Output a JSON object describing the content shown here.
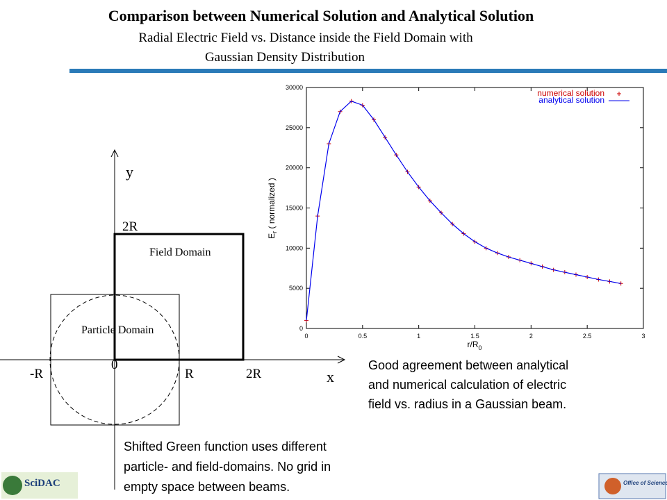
{
  "header": {
    "title": "Comparison between Numerical Solution and Analytical Solution",
    "subtitle_lines": [
      "Radial Electric Field vs. Distance inside the Field Domain with",
      "Gaussian Density Distribution"
    ]
  },
  "diagram": {
    "y_axis": "y",
    "x_axis": "x",
    "origin": "0",
    "y_2r": "2R",
    "x_neg_r": "-R",
    "x_r": "R",
    "x_2r": "2R",
    "field_domain": "Field Domain",
    "particle_domain": "Particle Domain"
  },
  "chart_data": {
    "type": "line",
    "xlabel": {
      "main": "r/R",
      "subscript": "0"
    },
    "ylabel": {
      "main": "E",
      "subscript": "r",
      "rest": " ( normalized )"
    },
    "x": [
      0,
      0.1,
      0.2,
      0.3,
      0.4,
      0.5,
      0.6,
      0.7,
      0.8,
      0.9,
      1.0,
      1.1,
      1.2,
      1.3,
      1.4,
      1.5,
      1.6,
      1.7,
      1.8,
      1.9,
      2.0,
      2.1,
      2.2,
      2.3,
      2.4,
      2.5,
      2.6,
      2.7,
      2.8
    ],
    "series": [
      {
        "name": "numerical solution",
        "color": "#cc0000",
        "marker": "+",
        "values": [
          1000,
          14000,
          23000,
          27000,
          28300,
          27800,
          26000,
          23800,
          21600,
          19500,
          17600,
          15900,
          14400,
          13000,
          11800,
          10800,
          10000,
          9400,
          8900,
          8500,
          8100,
          7700,
          7300,
          7000,
          6700,
          6400,
          6100,
          5850,
          5600
        ]
      },
      {
        "name": "analytical solution",
        "color": "#0000ee",
        "marker": "line",
        "values": [
          1000,
          14000,
          23000,
          27000,
          28300,
          27800,
          26000,
          23800,
          21600,
          19500,
          17600,
          15900,
          14400,
          13000,
          11800,
          10800,
          10000,
          9400,
          8900,
          8500,
          8100,
          7700,
          7300,
          7000,
          6700,
          6400,
          6100,
          5850,
          5600
        ]
      }
    ],
    "xlim": [
      0,
      3
    ],
    "xticks": [
      0,
      0.5,
      1,
      1.5,
      2,
      2.5,
      3
    ],
    "ylim": [
      0,
      30000
    ],
    "yticks": [
      0,
      5000,
      10000,
      15000,
      20000,
      25000,
      30000
    ],
    "legend": "top-right"
  },
  "captions": {
    "chart_note": [
      "Good agreement between analytical",
      "and numerical calculation of electric",
      "field vs. radius in a Gaussian beam."
    ],
    "diagram_note": [
      "Shifted Green function uses different",
      "particle- and field-domains. No grid in",
      "empty space between beams."
    ]
  },
  "logos": {
    "left": "SciDAC",
    "right": "Office of Science"
  }
}
